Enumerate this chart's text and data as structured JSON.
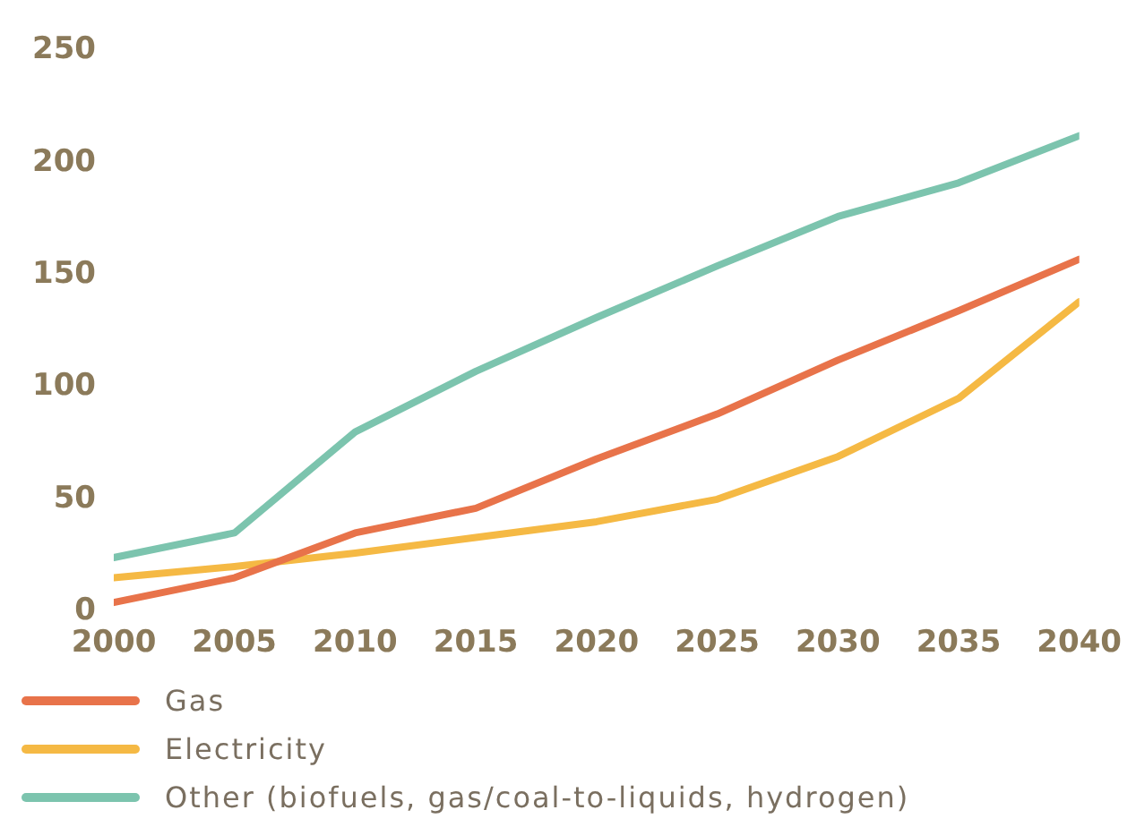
{
  "chart_data": {
    "type": "line",
    "x": [
      2000,
      2005,
      2010,
      2015,
      2020,
      2025,
      2030,
      2035,
      2040
    ],
    "series": [
      {
        "name": "Gas",
        "color": "#e8734a",
        "values": [
          4,
          15,
          35,
          46,
          68,
          88,
          112,
          134,
          157
        ]
      },
      {
        "name": "Electricity",
        "color": "#f5b944",
        "values": [
          15,
          20,
          26,
          33,
          40,
          50,
          69,
          95,
          138
        ]
      },
      {
        "name": "Other (biofuels, gas/coal-to-liquids, hydrogen)",
        "color": "#7cc4ae",
        "values": [
          24,
          35,
          80,
          107,
          131,
          154,
          176,
          191,
          212
        ]
      }
    ],
    "xlim": [
      2000,
      2040
    ],
    "xticks": [
      2000,
      2005,
      2010,
      2015,
      2020,
      2025,
      2030,
      2035,
      2040
    ],
    "ylim": [
      0,
      250
    ],
    "yticks": [
      0,
      50,
      100,
      150,
      200,
      250
    ],
    "grid": false,
    "legend": "bottom",
    "marker": "none",
    "line_style": "solid"
  }
}
